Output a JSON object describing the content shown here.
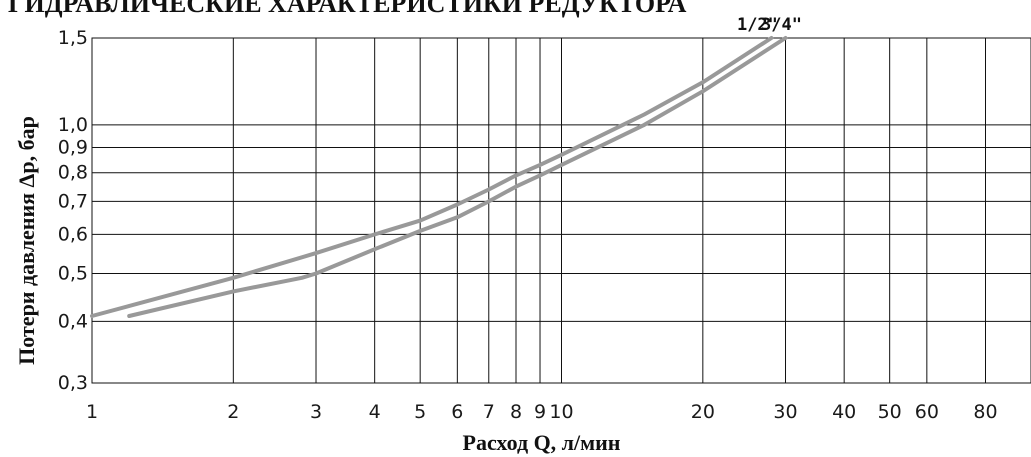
{
  "chart_data": {
    "type": "line",
    "title": "ГИДРАВЛИЧЕСКИЕ ХАРАКТЕРИСТИКИ РЕДУКТОРА",
    "xlabel": "Расход Q, л/мин",
    "ylabel": "Потери давления Δр, бар",
    "x_scale": "log",
    "y_scale": "log",
    "xlim": [
      1,
      100
    ],
    "ylim": [
      0.3,
      1.5
    ],
    "grid": true,
    "x_ticks": [
      1,
      2,
      3,
      4,
      5,
      6,
      7,
      8,
      9,
      10,
      20,
      30,
      40,
      50,
      60,
      80
    ],
    "x_tick_labels": [
      "1",
      "2",
      "3",
      "4",
      "5",
      "6",
      "7",
      "8",
      "9",
      "10",
      "20",
      "30",
      "40",
      "50",
      "60",
      "80"
    ],
    "y_ticks": [
      0.3,
      0.4,
      0.5,
      0.6,
      0.7,
      0.8,
      0.9,
      1.0,
      1.5
    ],
    "y_tick_labels": [
      "0,3",
      "0,4",
      "0,5",
      "0,6",
      "0,7",
      "0,8",
      "0,9",
      "1,0",
      "1,5"
    ],
    "series_color": "#999999",
    "series": [
      {
        "name": "1/2\"",
        "x": [
          1,
          2,
          3,
          4,
          5,
          6,
          7,
          8,
          9,
          10,
          15,
          20,
          28
        ],
        "y": [
          0.41,
          0.49,
          0.55,
          0.6,
          0.64,
          0.69,
          0.74,
          0.79,
          0.83,
          0.87,
          1.05,
          1.22,
          1.5
        ]
      },
      {
        "name": "3/4\"",
        "x": [
          1.2,
          2,
          2.8,
          3,
          4,
          5,
          6,
          7,
          8,
          9,
          10,
          15,
          20,
          30
        ],
        "y": [
          0.41,
          0.46,
          0.49,
          0.5,
          0.56,
          0.61,
          0.65,
          0.7,
          0.75,
          0.79,
          0.83,
          1.0,
          1.17,
          1.5
        ]
      }
    ]
  }
}
